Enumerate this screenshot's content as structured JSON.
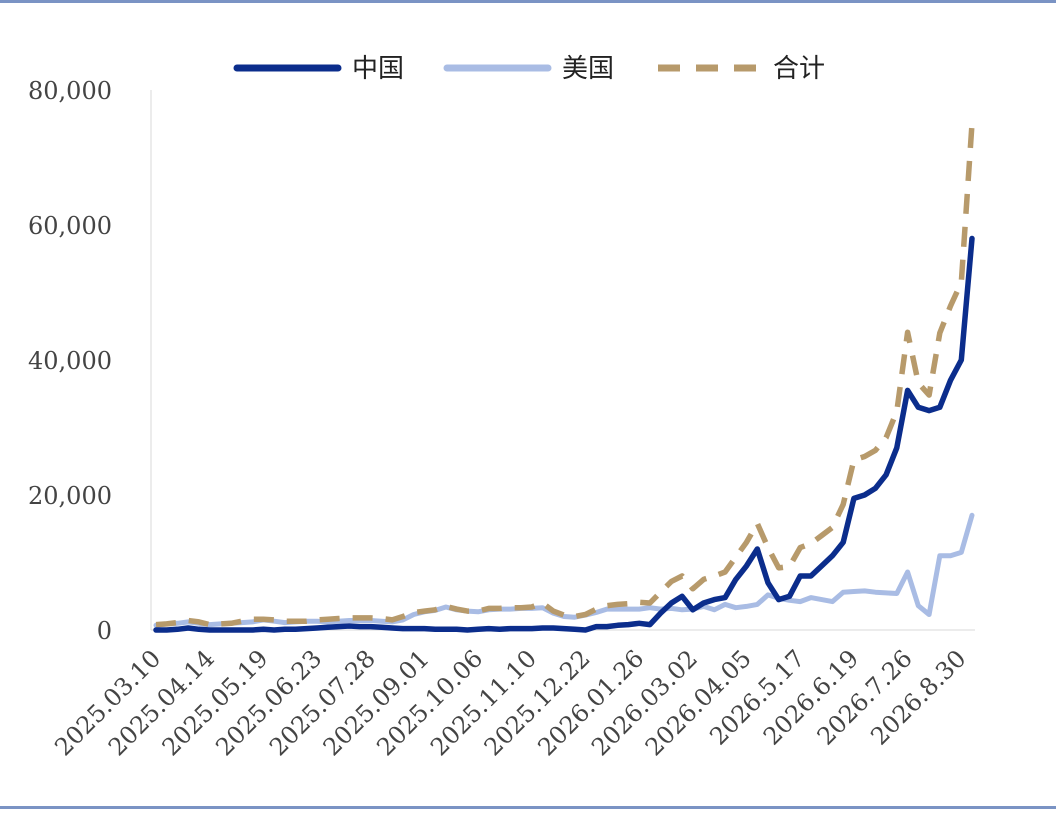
{
  "chart_data": {
    "type": "line",
    "title": "",
    "xlabel": "",
    "ylabel": "",
    "ylim": [
      0,
      80000
    ],
    "y_ticks": [
      "0",
      "20,000",
      "40,000",
      "60,000",
      "80,000"
    ],
    "y_tick_values": [
      0,
      20000,
      40000,
      60000,
      80000
    ],
    "x_tick_labels": [
      "2025.03.10",
      "2025.04.14",
      "2025.05.19",
      "2025.06.23",
      "2025.07.28",
      "2025.09.01",
      "2025.10.06",
      "2025.11.10",
      "2025.12.22",
      "2026.01.26",
      "2026.03.02",
      "2026.04.05",
      "2026.5.17",
      "2026.6.19",
      "2026.7.26",
      "2026.8.30"
    ],
    "x_tick_index": [
      0,
      5,
      10,
      15,
      20,
      25,
      30,
      35,
      40,
      45,
      50,
      55,
      60,
      65,
      70,
      75
    ],
    "legend_position": "top",
    "grid": false,
    "series": [
      {
        "name": "中国",
        "color": "#0b2d8c",
        "style": "solid",
        "values": [
          0,
          0,
          100,
          300,
          100,
          0,
          0,
          0,
          0,
          0,
          100,
          0,
          100,
          100,
          200,
          300,
          400,
          500,
          600,
          500,
          500,
          400,
          300,
          200,
          200,
          200,
          100,
          100,
          100,
          0,
          100,
          200,
          100,
          200,
          200,
          200,
          300,
          300,
          200,
          100,
          0,
          500,
          500,
          700,
          800,
          1000,
          800,
          2500,
          4000,
          5000,
          3000,
          4000,
          4500,
          4800,
          7500,
          9500,
          12000,
          7000,
          4500,
          5000,
          8000,
          8000,
          9500,
          11000,
          13000,
          19500,
          20000,
          21000,
          23000,
          27000,
          35500,
          33000,
          32500,
          33000,
          37000,
          40000,
          58000
        ]
      },
      {
        "name": "美国",
        "color": "#a9bce4",
        "style": "solid",
        "values": [
          700,
          900,
          1000,
          1200,
          1000,
          800,
          900,
          1000,
          1100,
          1200,
          1500,
          1300,
          1100,
          1200,
          1300,
          1300,
          1200,
          1300,
          1400,
          1400,
          1400,
          1300,
          1200,
          1500,
          2300,
          2700,
          2900,
          3400,
          3000,
          2800,
          2700,
          3000,
          3100,
          3100,
          3200,
          3200,
          3300,
          2500,
          2000,
          1900,
          2200,
          2600,
          3100,
          3100,
          3100,
          3100,
          3300,
          3100,
          3200,
          3000,
          3100,
          3500,
          3000,
          3800,
          3300,
          3500,
          3800,
          5200,
          4700,
          4400,
          4200,
          4800,
          4500,
          4200,
          5600,
          5700,
          5800,
          5600,
          5500,
          5400,
          8600,
          3600,
          2300,
          11000,
          11000,
          11500,
          17000
        ]
      },
      {
        "name": "合计",
        "color": "#b79a6b",
        "style": "dashed",
        "values": [
          800,
          900,
          1100,
          1400,
          1200,
          800,
          900,
          1000,
          1300,
          1600,
          1600,
          1500,
          1300,
          1300,
          1300,
          1500,
          1600,
          1700,
          1800,
          1800,
          1800,
          1700,
          1500,
          2000,
          2600,
          2800,
          3000,
          3500,
          3100,
          2800,
          2800,
          3200,
          3200,
          3300,
          3300,
          3400,
          4000,
          2800,
          2200,
          2000,
          2300,
          3100,
          3600,
          3800,
          3900,
          4100,
          4000,
          5600,
          7200,
          8000,
          6100,
          7500,
          8000,
          8600,
          10800,
          13000,
          15800,
          12200,
          9200,
          9400,
          12200,
          12800,
          14000,
          15200,
          18600,
          25200,
          25700,
          26600,
          28500,
          32400,
          44100,
          36600,
          34800,
          44000,
          48000,
          51500,
          75000
        ]
      }
    ]
  }
}
